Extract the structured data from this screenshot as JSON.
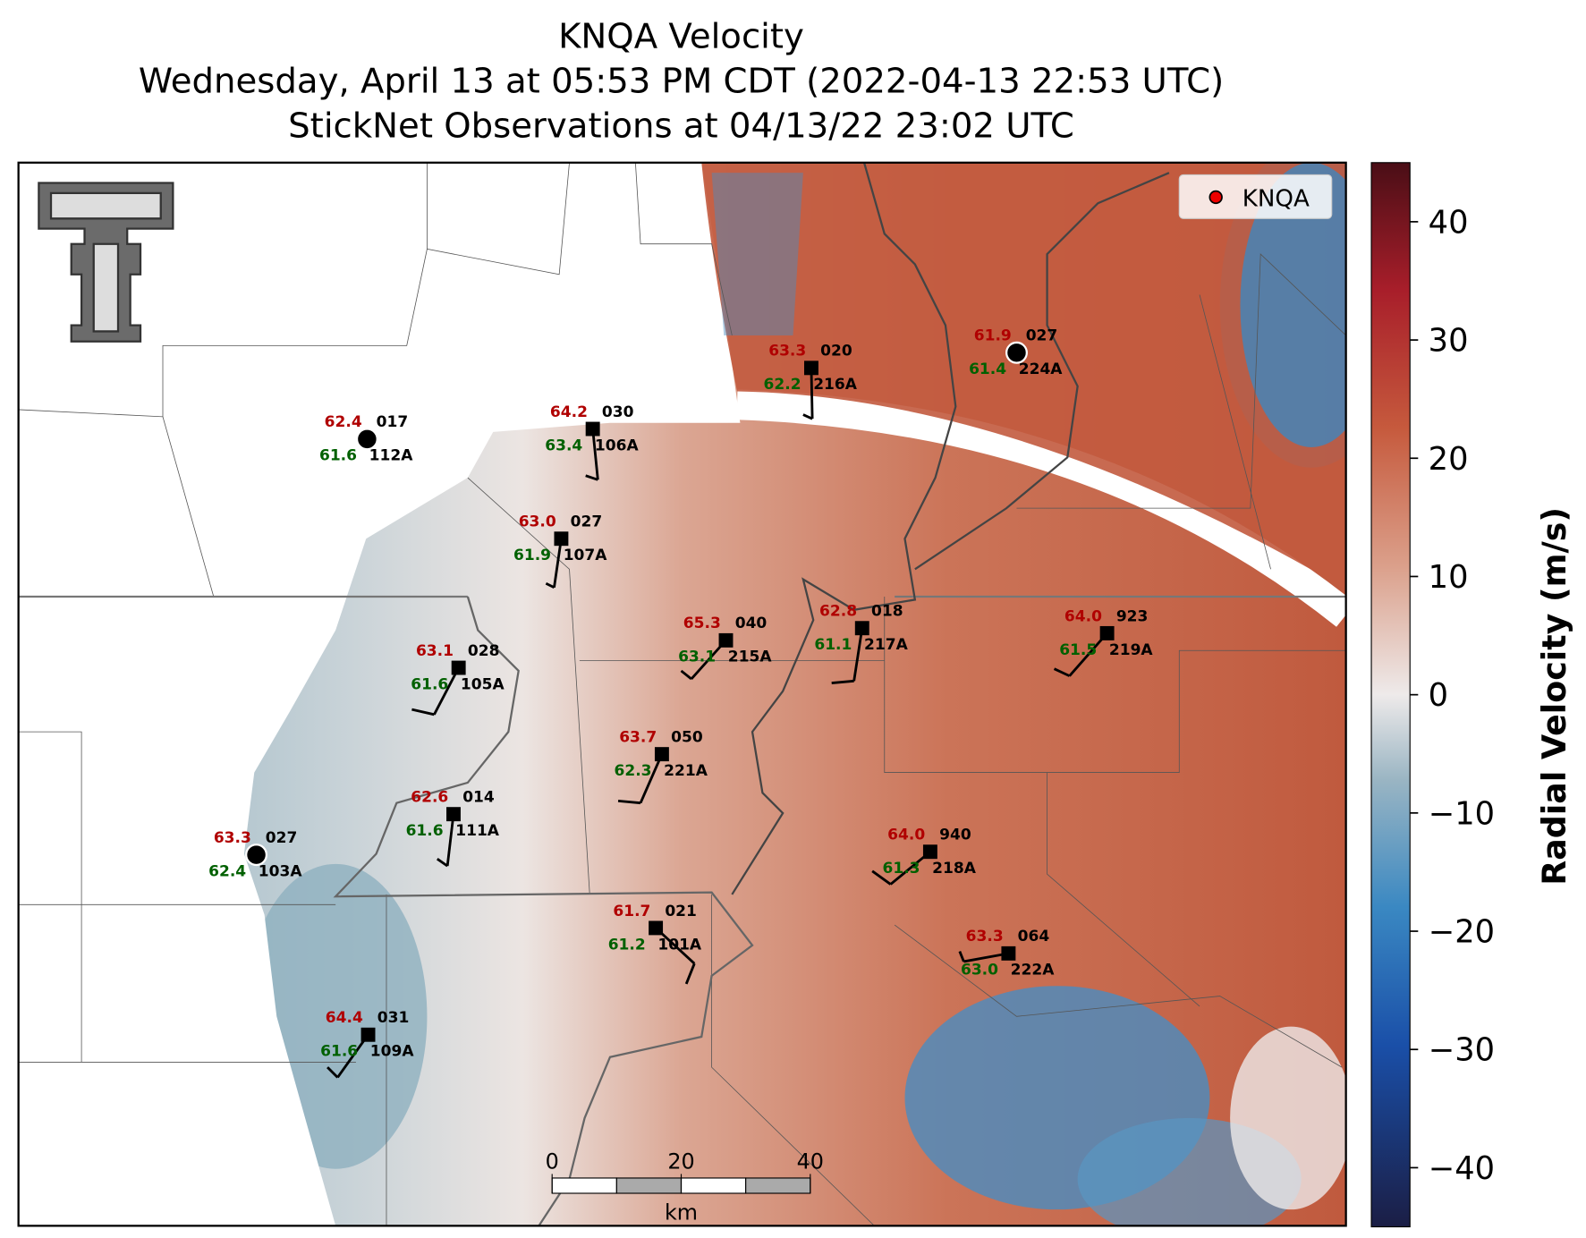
{
  "title": [
    "KNQA Velocity",
    "Wednesday, April 13 at 05:53 PM CDT (2022-04-13 22:53 UTC)",
    "StickNet Observations at 04/13/22 23:02 UTC"
  ],
  "legend": {
    "label": "KNQA"
  },
  "stations": [
    {
      "id": "112A",
      "temperature": "62.4",
      "dewpoint": "61.6",
      "value": "017"
    },
    {
      "id": "106A",
      "temperature": "64.2",
      "dewpoint": "63.4",
      "value": "030"
    },
    {
      "id": "216A",
      "temperature": "63.3",
      "dewpoint": "62.2",
      "value": "020"
    },
    {
      "id": "224A",
      "temperature": "61.9",
      "dewpoint": "61.4",
      "value": "027"
    },
    {
      "id": "107A",
      "temperature": "63.0",
      "dewpoint": "61.9",
      "value": "027"
    },
    {
      "id": "215A",
      "temperature": "65.3",
      "dewpoint": "63.1",
      "value": "040"
    },
    {
      "id": "217A",
      "temperature": "62.8",
      "dewpoint": "61.1",
      "value": "018"
    },
    {
      "id": "219A",
      "temperature": "64.0",
      "dewpoint": "61.5",
      "value": "923"
    },
    {
      "id": "105A",
      "temperature": "63.1",
      "dewpoint": "61.6",
      "value": "028"
    },
    {
      "id": "221A",
      "temperature": "63.7",
      "dewpoint": "62.3",
      "value": "050"
    },
    {
      "id": "111A",
      "temperature": "62.6",
      "dewpoint": "61.6",
      "value": "014"
    },
    {
      "id": "103A",
      "temperature": "63.3",
      "dewpoint": "62.4",
      "value": "027"
    },
    {
      "id": "218A",
      "temperature": "64.0",
      "dewpoint": "61.3",
      "value": "940"
    },
    {
      "id": "101A",
      "temperature": "61.7",
      "dewpoint": "61.2",
      "value": "021"
    },
    {
      "id": "222A",
      "temperature": "63.3",
      "dewpoint": "63.0",
      "value": "064"
    },
    {
      "id": "109A",
      "temperature": "64.4",
      "dewpoint": "61.6",
      "value": "031"
    }
  ],
  "colorbar": {
    "label": "Radial Velocity (m/s)",
    "lim": [
      -45,
      45
    ],
    "ticks": [
      {
        "value": -40,
        "label": "−40"
      },
      {
        "value": -30,
        "label": "−30"
      },
      {
        "value": -20,
        "label": "−20"
      },
      {
        "value": -10,
        "label": "−10"
      },
      0,
      10,
      20,
      30,
      40
    ]
  },
  "scale_bar": {
    "ticks": [
      0,
      20,
      40
    ],
    "unit": "km"
  }
}
